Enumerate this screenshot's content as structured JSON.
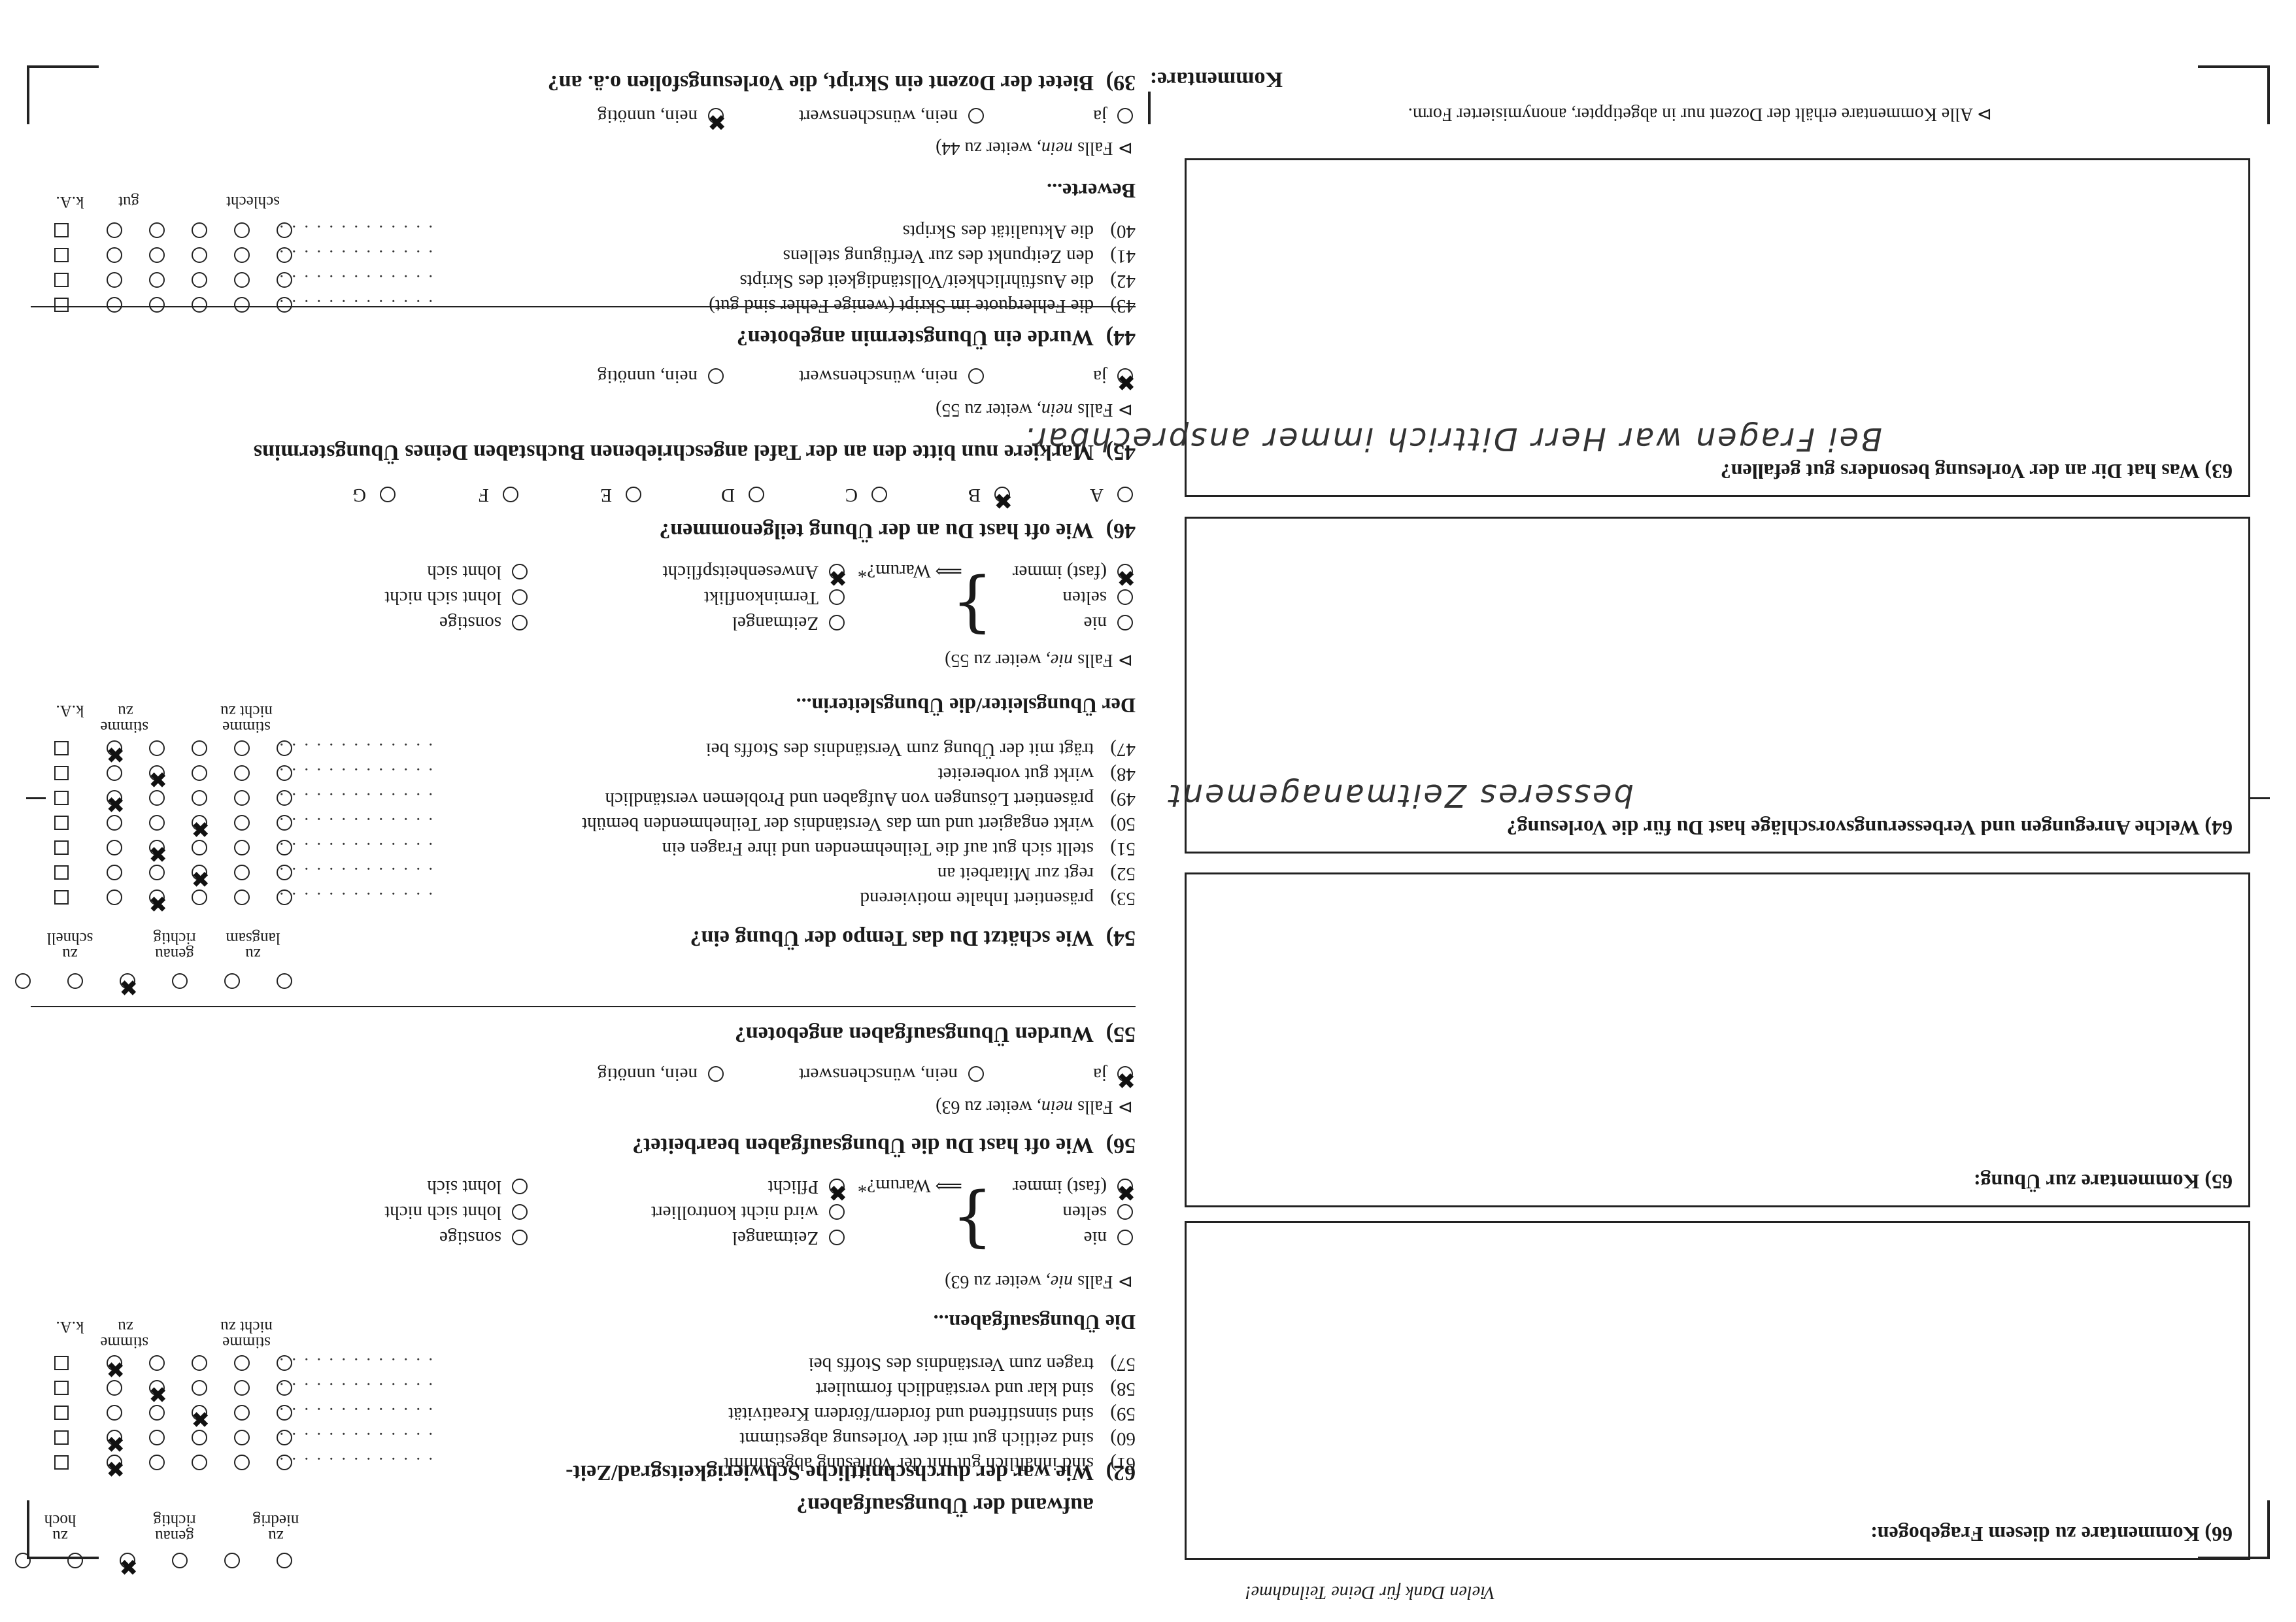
{
  "right": {
    "q39": {
      "num": "39)",
      "text": "Bietet der Dozent ein Skript, die Vorlesungsfolien o.ä. an?",
      "opts": [
        "ja",
        "nein, wünschenswert",
        "nein, unnötig"
      ],
      "note_pre": "Falls ",
      "note_em": "nein,",
      "note_post": " weiter zu  44)"
    },
    "bewerte": {
      "title": "Bewerte...",
      "h_schlecht": "schlecht",
      "h_gut": "gut",
      "h_ka": "k.A.",
      "rows": [
        {
          "n": "40)",
          "t": "die Aktualität des Skripts"
        },
        {
          "n": "41)",
          "t": "den Zeitpunkt des zur Verfügung stellens"
        },
        {
          "n": "42)",
          "t": "die Ausführlichkeit/Vollständigkeit des Skripts"
        },
        {
          "n": "43)",
          "t": "die Fehlerquote im Skript (wenige Fehler sind gut)"
        }
      ]
    },
    "q44": {
      "num": "44)",
      "text": "Wurde ein Übungstermin angeboten?",
      "opts": [
        "ja",
        "nein, wünschenswert",
        "nein, unnötig"
      ],
      "note_pre": "Falls ",
      "note_em": "nein,",
      "note_post": " weiter zu  55)"
    },
    "q45": {
      "num": "45)",
      "text": "Markiere nun bitte den an der Tafel angeschriebenen Buchstaben Deines Übungstermins",
      "letters": [
        "A",
        "B",
        "C",
        "D",
        "E",
        "F",
        "G"
      ]
    },
    "q46": {
      "num": "46)",
      "text": "Wie oft hast Du an der Übung teilgenommen?",
      "freq": [
        "(fast) immer",
        "selten",
        "nie"
      ],
      "arrow": "⟹ Warum?*",
      "reasons1": [
        "Anwesenheitspflicht",
        "Terminkonflikt",
        "Zeitmangel"
      ],
      "reasons2": [
        "lohnt sich",
        "lohnt sich nicht",
        "sonstige"
      ],
      "note_pre": "Falls ",
      "note_em": "nie,",
      "note_post": " weiter zu  55)"
    },
    "leiter": {
      "title": "Der Übungsleiter/die Übungsleiterin...",
      "h_l1": "stimme",
      "h_l2": "nicht zu",
      "h_r1": "stimme",
      "h_r2": "zu",
      "h_ka": "k.A.",
      "rows": [
        {
          "n": "47)",
          "t": "trägt mit der Übung zum Verständnis des Stoffs bei"
        },
        {
          "n": "48)",
          "t": "wirkt gut vorbereitet"
        },
        {
          "n": "49)",
          "t": "präsentiert Lösungen von Aufgaben und Problemen verständlich"
        },
        {
          "n": "50)",
          "t": "wirkt engagiert und um das Verständnis der Teilnehmenden bemüht"
        },
        {
          "n": "51)",
          "t": "stellt sich gut auf die Teilnehmenden und ihre Fragen ein"
        },
        {
          "n": "52)",
          "t": "regt zur Mitarbeit an"
        },
        {
          "n": "53)",
          "t": "präsentiert Inhalte motivierend"
        }
      ]
    },
    "q54": {
      "num": "54)",
      "text": "Wie schätzt Du das Tempo der Übung ein?",
      "l1": "zu",
      "l2": "langsam",
      "m1": "genau",
      "m2": "richtig",
      "r1": "zu",
      "r2": "schnell"
    },
    "q55": {
      "num": "55)",
      "text": "Wurden Übungsaufgaben angeboten?",
      "opts": [
        "ja",
        "nein, wünschenswert",
        "nein, unnötig"
      ],
      "note_pre": "Falls ",
      "note_em": "nein,",
      "note_post": " weiter zu  63)"
    },
    "q56": {
      "num": "56)",
      "text": "Wie oft hast Du die Übungsaufgaben bearbeitet?",
      "freq": [
        "(fast) immer",
        "selten",
        "nie"
      ],
      "arrow": "⟹ Warum?*",
      "reasons1": [
        "Pflicht",
        "wird nicht kontrolliert",
        "Zeitmangel"
      ],
      "reasons2": [
        "lohnt sich",
        "lohnt sich nicht",
        "sonstige"
      ],
      "note_pre": "Falls ",
      "note_em": "nie,",
      "note_post": " weiter zu  63)"
    },
    "aufgaben": {
      "title": "Die Übungsaufgaben...",
      "h_l1": "stimme",
      "h_l2": "nicht zu",
      "h_r1": "stimme",
      "h_r2": "zu",
      "h_ka": "k.A.",
      "rows": [
        {
          "n": "57)",
          "t": "tragen zum Verständnis des Stoffs bei"
        },
        {
          "n": "58)",
          "t": "sind klar und verständlich formuliert"
        },
        {
          "n": "59)",
          "t": "sind sinnstiftend und fordern/fördern Kreativität"
        },
        {
          "n": "60)",
          "t": "sind zeitlich gut mit der Vorlesung abgestimmt"
        },
        {
          "n": "61)",
          "t": "sind inhaltlich gut mit der Vorlesung abgestimmt"
        }
      ]
    },
    "q62": {
      "num": "62)",
      "text1": "Wie war der durchschnittliche Schwierigkeitsgrad/Zeit-",
      "text2": "aufwand der Übungsaufgaben?",
      "l1": "zu",
      "l2": "niedrig",
      "m1": "genau",
      "m2": "richtig",
      "r1": "zu",
      "r2": "hoch"
    }
  },
  "left": {
    "title": "Kommentare:",
    "note": "Alle Kommentare erhält der Dozent nur in abgetippter, anonymisierter Form.",
    "b63": {
      "title": "63) Was hat Dir an der Vorlesung besonders gut gefallen?",
      "hand": "Bei Fragen war Herr Dittrich immer ansprechbar."
    },
    "b64": {
      "title": "64) Welche Anregungen und Verbesserungsvorschläge hast Du für die Vorlesung?",
      "hand": "besseres Zeitmanagement"
    },
    "b65": {
      "title": "65) Kommentare zur Übung:"
    },
    "b66": {
      "title": "66) Kommentare zu diesem Fragebogen:"
    },
    "thanks": "Vielen Dank für Deine Teilnahme!"
  }
}
